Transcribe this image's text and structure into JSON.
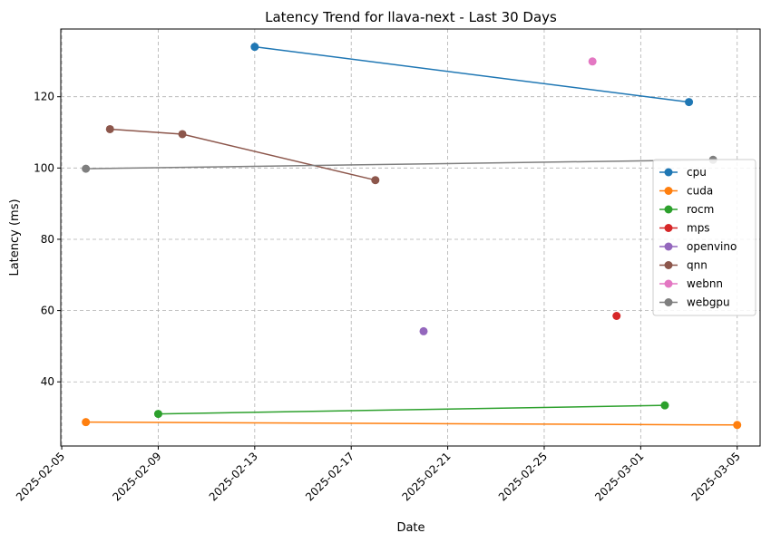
{
  "chart_data": {
    "type": "line",
    "title": "Latency Trend for llava-next - Last 30 Days",
    "xlabel": "Date",
    "ylabel": "Latency (ms)",
    "x_axis_type": "date",
    "xlim": [
      "2025-02-05",
      "2025-03-06"
    ],
    "ylim": [
      22,
      139
    ],
    "x_ticks": [
      "2025-02-05",
      "2025-02-09",
      "2025-02-13",
      "2025-02-17",
      "2025-02-21",
      "2025-02-25",
      "2025-03-01",
      "2025-03-05"
    ],
    "y_ticks": [
      40,
      60,
      80,
      100,
      120
    ],
    "grid": true,
    "legend_position": "center-right",
    "series": [
      {
        "name": "cpu",
        "color": "#1f77b4",
        "points": [
          {
            "x": "2025-02-13",
            "y": 134.0
          },
          {
            "x": "2025-03-03",
            "y": 118.5
          }
        ]
      },
      {
        "name": "cuda",
        "color": "#ff7f0e",
        "points": [
          {
            "x": "2025-02-06",
            "y": 28.7
          },
          {
            "x": "2025-03-05",
            "y": 27.9
          }
        ]
      },
      {
        "name": "rocm",
        "color": "#2ca02c",
        "points": [
          {
            "x": "2025-02-09",
            "y": 31.0
          },
          {
            "x": "2025-03-02",
            "y": 33.4
          }
        ]
      },
      {
        "name": "mps",
        "color": "#d62728",
        "points": [
          {
            "x": "2025-02-28",
            "y": 58.5
          }
        ]
      },
      {
        "name": "openvino",
        "color": "#9467bd",
        "points": [
          {
            "x": "2025-02-20",
            "y": 54.2
          }
        ]
      },
      {
        "name": "qnn",
        "color": "#8c564b",
        "points": [
          {
            "x": "2025-02-07",
            "y": 110.9
          },
          {
            "x": "2025-02-10",
            "y": 109.5
          },
          {
            "x": "2025-02-18",
            "y": 96.6
          }
        ]
      },
      {
        "name": "webnn",
        "color": "#e377c2",
        "points": [
          {
            "x": "2025-02-27",
            "y": 129.9
          }
        ]
      },
      {
        "name": "webgpu",
        "color": "#7f7f7f",
        "points": [
          {
            "x": "2025-02-06",
            "y": 99.8
          },
          {
            "x": "2025-03-04",
            "y": 102.3
          }
        ]
      }
    ]
  }
}
